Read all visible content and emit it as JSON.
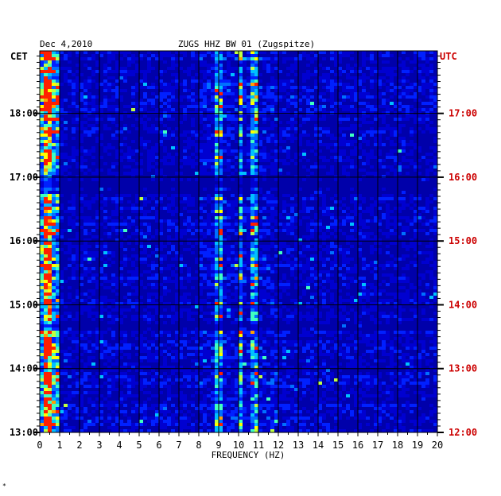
{
  "chart_data": {
    "type": "heatmap",
    "title": "ZUGS HHZ BW 01 (Zugspitze)",
    "date": "Dec 4,2010",
    "left_axis_label": "CET",
    "right_axis_label": "UTC",
    "xlabel": "FREQUENCY (HZ)",
    "xlim": [
      0,
      20
    ],
    "x_ticks": [
      "0",
      "1",
      "2",
      "3",
      "4",
      "5",
      "6",
      "7",
      "8",
      "9",
      "10",
      "11",
      "12",
      "13",
      "14",
      "15",
      "16",
      "17",
      "18",
      "19",
      "20"
    ],
    "y_ticks_cet": [
      "18:00",
      "17:00",
      "16:00",
      "15:00",
      "14:00",
      "13:00"
    ],
    "y_ticks_utc": [
      "17:00",
      "16:00",
      "15:00",
      "14:00",
      "13:00",
      "12:00"
    ],
    "y_range_cet_hours": [
      13.0,
      18.98
    ],
    "colors": {
      "low": "#0000aa",
      "background_band": "#0000cc",
      "mid": "#00a0ff",
      "high": "#ffff00",
      "peak": "#ff2000",
      "utc_text": "#cc0000",
      "grid": "#000000"
    },
    "spectral_features_hz": [
      {
        "freq": 0.4,
        "note": "strong low-frequency energy"
      },
      {
        "freq": 10.1,
        "note": "persistent narrow band"
      },
      {
        "freq": 10.8,
        "note": "persistent band"
      },
      {
        "freq": 9.0,
        "note": "intermittent band"
      }
    ],
    "footer_mark": "*"
  }
}
